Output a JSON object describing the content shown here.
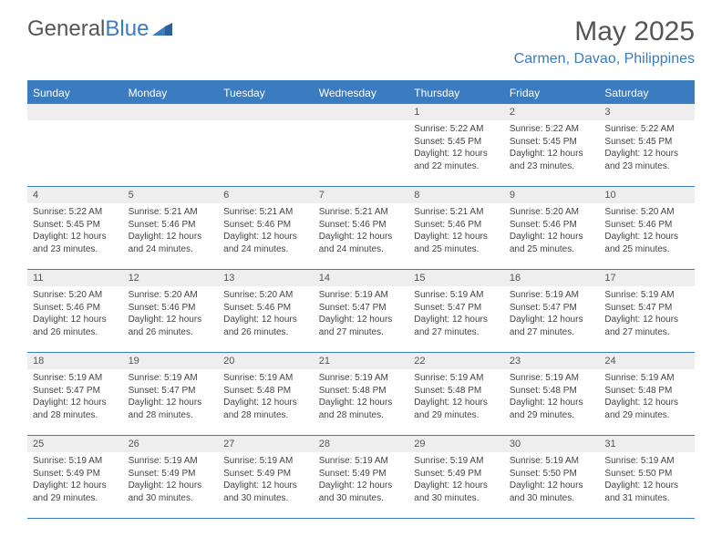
{
  "logo": {
    "text1": "General",
    "text2": "Blue"
  },
  "title": "May 2025",
  "location": "Carmen, Davao, Philippines",
  "colors": {
    "accent": "#3b7bbf",
    "headerBg": "#3b7bbf",
    "stripe": "#eeeeee",
    "text": "#444"
  },
  "day_names": [
    "Sunday",
    "Monday",
    "Tuesday",
    "Wednesday",
    "Thursday",
    "Friday",
    "Saturday"
  ],
  "weeks": [
    [
      {
        "blank": true
      },
      {
        "blank": true
      },
      {
        "blank": true
      },
      {
        "blank": true
      },
      {
        "n": "1",
        "sunrise": "5:22 AM",
        "sunset": "5:45 PM",
        "daylight": "12 hours and 22 minutes."
      },
      {
        "n": "2",
        "sunrise": "5:22 AM",
        "sunset": "5:45 PM",
        "daylight": "12 hours and 23 minutes."
      },
      {
        "n": "3",
        "sunrise": "5:22 AM",
        "sunset": "5:45 PM",
        "daylight": "12 hours and 23 minutes."
      }
    ],
    [
      {
        "n": "4",
        "sunrise": "5:22 AM",
        "sunset": "5:45 PM",
        "daylight": "12 hours and 23 minutes."
      },
      {
        "n": "5",
        "sunrise": "5:21 AM",
        "sunset": "5:46 PM",
        "daylight": "12 hours and 24 minutes."
      },
      {
        "n": "6",
        "sunrise": "5:21 AM",
        "sunset": "5:46 PM",
        "daylight": "12 hours and 24 minutes."
      },
      {
        "n": "7",
        "sunrise": "5:21 AM",
        "sunset": "5:46 PM",
        "daylight": "12 hours and 24 minutes."
      },
      {
        "n": "8",
        "sunrise": "5:21 AM",
        "sunset": "5:46 PM",
        "daylight": "12 hours and 25 minutes."
      },
      {
        "n": "9",
        "sunrise": "5:20 AM",
        "sunset": "5:46 PM",
        "daylight": "12 hours and 25 minutes."
      },
      {
        "n": "10",
        "sunrise": "5:20 AM",
        "sunset": "5:46 PM",
        "daylight": "12 hours and 25 minutes."
      }
    ],
    [
      {
        "n": "11",
        "sunrise": "5:20 AM",
        "sunset": "5:46 PM",
        "daylight": "12 hours and 26 minutes."
      },
      {
        "n": "12",
        "sunrise": "5:20 AM",
        "sunset": "5:46 PM",
        "daylight": "12 hours and 26 minutes."
      },
      {
        "n": "13",
        "sunrise": "5:20 AM",
        "sunset": "5:46 PM",
        "daylight": "12 hours and 26 minutes."
      },
      {
        "n": "14",
        "sunrise": "5:19 AM",
        "sunset": "5:47 PM",
        "daylight": "12 hours and 27 minutes."
      },
      {
        "n": "15",
        "sunrise": "5:19 AM",
        "sunset": "5:47 PM",
        "daylight": "12 hours and 27 minutes."
      },
      {
        "n": "16",
        "sunrise": "5:19 AM",
        "sunset": "5:47 PM",
        "daylight": "12 hours and 27 minutes."
      },
      {
        "n": "17",
        "sunrise": "5:19 AM",
        "sunset": "5:47 PM",
        "daylight": "12 hours and 27 minutes."
      }
    ],
    [
      {
        "n": "18",
        "sunrise": "5:19 AM",
        "sunset": "5:47 PM",
        "daylight": "12 hours and 28 minutes."
      },
      {
        "n": "19",
        "sunrise": "5:19 AM",
        "sunset": "5:47 PM",
        "daylight": "12 hours and 28 minutes."
      },
      {
        "n": "20",
        "sunrise": "5:19 AM",
        "sunset": "5:48 PM",
        "daylight": "12 hours and 28 minutes."
      },
      {
        "n": "21",
        "sunrise": "5:19 AM",
        "sunset": "5:48 PM",
        "daylight": "12 hours and 28 minutes."
      },
      {
        "n": "22",
        "sunrise": "5:19 AM",
        "sunset": "5:48 PM",
        "daylight": "12 hours and 29 minutes."
      },
      {
        "n": "23",
        "sunrise": "5:19 AM",
        "sunset": "5:48 PM",
        "daylight": "12 hours and 29 minutes."
      },
      {
        "n": "24",
        "sunrise": "5:19 AM",
        "sunset": "5:48 PM",
        "daylight": "12 hours and 29 minutes."
      }
    ],
    [
      {
        "n": "25",
        "sunrise": "5:19 AM",
        "sunset": "5:49 PM",
        "daylight": "12 hours and 29 minutes."
      },
      {
        "n": "26",
        "sunrise": "5:19 AM",
        "sunset": "5:49 PM",
        "daylight": "12 hours and 30 minutes."
      },
      {
        "n": "27",
        "sunrise": "5:19 AM",
        "sunset": "5:49 PM",
        "daylight": "12 hours and 30 minutes."
      },
      {
        "n": "28",
        "sunrise": "5:19 AM",
        "sunset": "5:49 PM",
        "daylight": "12 hours and 30 minutes."
      },
      {
        "n": "29",
        "sunrise": "5:19 AM",
        "sunset": "5:49 PM",
        "daylight": "12 hours and 30 minutes."
      },
      {
        "n": "30",
        "sunrise": "5:19 AM",
        "sunset": "5:50 PM",
        "daylight": "12 hours and 30 minutes."
      },
      {
        "n": "31",
        "sunrise": "5:19 AM",
        "sunset": "5:50 PM",
        "daylight": "12 hours and 31 minutes."
      }
    ]
  ],
  "labels": {
    "sunrise": "Sunrise: ",
    "sunset": "Sunset: ",
    "daylight": "Daylight: "
  }
}
